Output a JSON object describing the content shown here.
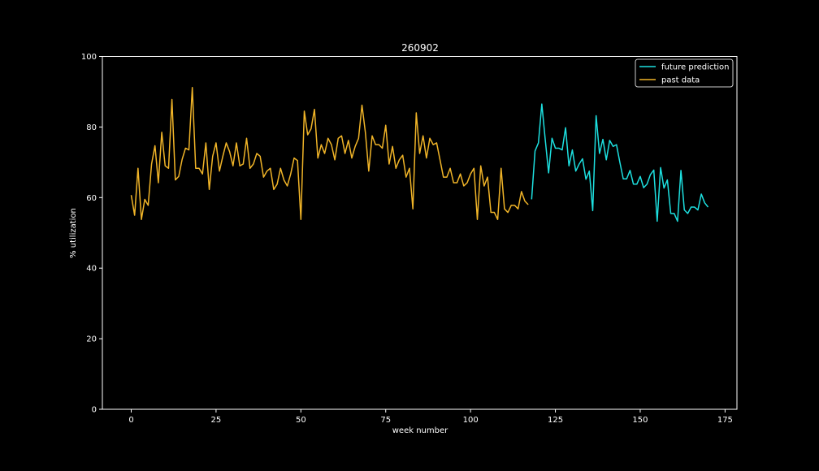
{
  "chart_data": {
    "type": "line",
    "title": "260902",
    "xlabel": "week number",
    "ylabel": "% utilization",
    "xlim": [
      -8.5,
      178.5
    ],
    "ylim": [
      0,
      100
    ],
    "xticks": [
      0,
      25,
      50,
      75,
      100,
      125,
      150,
      175
    ],
    "yticks": [
      0,
      20,
      40,
      60,
      80,
      100
    ],
    "xtick_labels": [
      "0",
      "25",
      "50",
      "75",
      "100",
      "125",
      "150",
      "175"
    ],
    "ytick_labels": [
      "0",
      "20",
      "40",
      "60",
      "80",
      "100"
    ],
    "grid": false,
    "legend_position": "top-right",
    "background": "#000000",
    "series": [
      {
        "name": "future prediction",
        "color": "#1de0e0",
        "x_start": 118,
        "values": [
          59.5,
          73.2,
          75.5,
          86.5,
          76.5,
          67.0,
          76.8,
          74.0,
          74.0,
          73.5,
          79.8,
          69.0,
          73.5,
          67.5,
          69.5,
          71.0,
          65.2,
          67.5,
          56.3,
          83.2,
          72.5,
          76.5,
          70.7,
          76.2,
          74.5,
          75.0,
          70.0,
          65.3,
          65.3,
          67.7,
          63.8,
          63.8,
          66.0,
          62.8,
          63.8,
          66.5,
          67.8,
          53.3,
          68.5,
          62.7,
          65.0,
          55.5,
          55.5,
          53.3,
          67.7,
          56.5,
          55.5,
          57.3,
          57.3,
          56.5,
          61.0,
          58.5,
          57.3
        ]
      },
      {
        "name": "past data",
        "color": "#f0b428",
        "x_start": 0,
        "values": [
          60.7,
          55.0,
          68.3,
          53.8,
          59.5,
          57.8,
          69.5,
          74.7,
          64.2,
          78.5,
          69.0,
          68.3,
          87.8,
          65.0,
          66.0,
          70.8,
          74.0,
          73.5,
          91.2,
          68.3,
          68.3,
          66.7,
          75.5,
          62.3,
          71.7,
          75.5,
          67.5,
          71.7,
          75.5,
          73.0,
          69.0,
          75.5,
          69.0,
          69.5,
          76.8,
          68.3,
          69.5,
          72.5,
          71.7,
          65.8,
          67.5,
          68.3,
          62.3,
          63.8,
          68.3,
          65.0,
          63.3,
          66.7,
          71.2,
          70.5,
          53.8,
          84.5,
          77.8,
          79.5,
          85.0,
          71.2,
          75.0,
          72.5,
          76.8,
          75.0,
          70.7,
          76.8,
          77.5,
          72.5,
          76.2,
          71.2,
          74.5,
          76.8,
          86.2,
          78.5,
          67.5,
          77.5,
          75.0,
          75.0,
          74.0,
          80.5,
          69.5,
          74.5,
          68.3,
          70.7,
          72.0,
          65.8,
          68.3,
          56.8,
          84.0,
          72.5,
          77.5,
          71.2,
          76.8,
          75.0,
          75.5,
          70.7,
          65.8,
          65.8,
          68.3,
          64.2,
          64.2,
          66.7,
          63.3,
          64.2,
          66.7,
          68.3,
          53.8,
          69.0,
          63.3,
          65.8,
          55.8,
          55.8,
          53.8,
          68.3,
          56.8,
          55.8,
          57.8,
          57.8,
          56.8,
          61.7,
          59.0,
          58.0
        ]
      }
    ]
  }
}
